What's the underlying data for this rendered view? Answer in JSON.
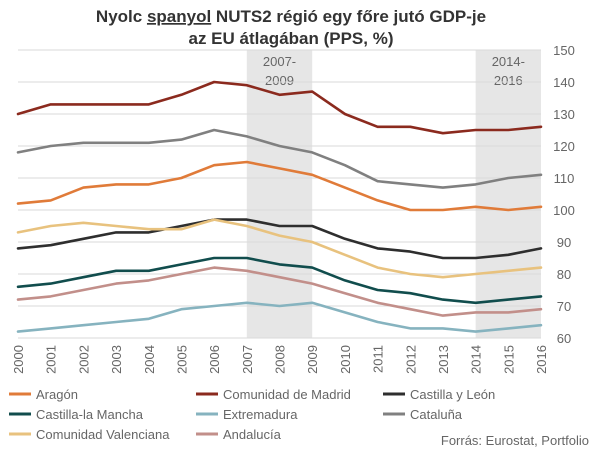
{
  "chart_data": {
    "type": "line",
    "title_parts": [
      "Nyolc ",
      "spanyol",
      " NUTS2 régió egy főre jutó GDP-je"
    ],
    "title_line2": "az EU átlagában (PPS, %)",
    "x": [
      "2000",
      "2001",
      "2002",
      "2003",
      "2004",
      "2005",
      "2006",
      "2007",
      "2008",
      "2009",
      "2010",
      "2011",
      "2012",
      "2013",
      "2014",
      "2015",
      "2016"
    ],
    "ylim": [
      60,
      150
    ],
    "yticks": [
      60,
      70,
      80,
      90,
      100,
      110,
      120,
      130,
      140,
      150
    ],
    "bands": [
      {
        "from": "2007",
        "to": "2009",
        "label_line1": "2007-",
        "label_line2": "2009",
        "color": "#e6e6e6"
      },
      {
        "from": "2014",
        "to": "2016",
        "label_line1": "2014-",
        "label_line2": "2016",
        "color": "#e6e6e6"
      }
    ],
    "series": [
      {
        "name": "Comunidad de Madrid",
        "color": "#8b2a1e",
        "values": [
          130,
          133,
          133,
          133,
          133,
          136,
          140,
          139,
          136,
          137,
          130,
          126,
          126,
          124,
          125,
          125,
          126
        ]
      },
      {
        "name": "Cataluña",
        "color": "#808080",
        "values": [
          118,
          120,
          121,
          121,
          121,
          122,
          125,
          123,
          120,
          118,
          114,
          109,
          108,
          107,
          108,
          110,
          111
        ]
      },
      {
        "name": "Aragón",
        "color": "#e07b39",
        "values": [
          102,
          103,
          107,
          108,
          108,
          110,
          114,
          115,
          113,
          111,
          107,
          103,
          100,
          100,
          101,
          100,
          101
        ]
      },
      {
        "name": "Castilla y León",
        "color": "#2e2e2e",
        "values": [
          88,
          89,
          91,
          93,
          93,
          95,
          97,
          97,
          95,
          95,
          91,
          88,
          87,
          85,
          85,
          86,
          88
        ]
      },
      {
        "name": "Comunidad Valenciana",
        "color": "#e8c27e",
        "values": [
          93,
          95,
          96,
          95,
          94,
          94,
          97,
          95,
          92,
          90,
          86,
          82,
          80,
          79,
          80,
          81,
          82
        ]
      },
      {
        "name": "Castilla-la Mancha",
        "color": "#114d4d",
        "values": [
          76,
          77,
          79,
          81,
          81,
          83,
          85,
          85,
          83,
          82,
          78,
          75,
          74,
          72,
          71,
          72,
          73
        ]
      },
      {
        "name": "Andalucía",
        "color": "#c28f8a",
        "values": [
          72,
          73,
          75,
          77,
          78,
          80,
          82,
          81,
          79,
          77,
          74,
          71,
          69,
          67,
          68,
          68,
          69
        ]
      },
      {
        "name": "Extremadura",
        "color": "#86b3bf",
        "values": [
          62,
          63,
          64,
          65,
          66,
          69,
          70,
          71,
          70,
          71,
          68,
          65,
          63,
          63,
          62,
          63,
          64
        ]
      }
    ],
    "legend": [
      [
        "Aragón",
        "Comunidad de Madrid",
        "Castilla y León"
      ],
      [
        "Castilla-la Mancha",
        "Extremadura",
        "Cataluña"
      ],
      [
        "Comunidad Valenciana",
        "Andalucía"
      ]
    ],
    "source": "Forrás: Eurostat, Portfolio"
  }
}
